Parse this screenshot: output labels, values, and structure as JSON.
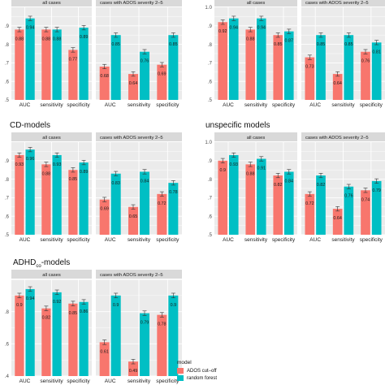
{
  "panel_titles": {
    "cd": "CD-models",
    "unspecific": "unspecific models",
    "adhd_base": "ADHD",
    "adhd_sub": "co",
    "adhd_tail": "-models"
  },
  "legend": {
    "title": "model",
    "items": [
      {
        "label": "ADOS cut–off",
        "color": "#F8766D"
      },
      {
        "label": "random forest",
        "color": "#00BFC4"
      }
    ]
  },
  "colors": {
    "ados": "#F8766D",
    "rf": "#00BFC4",
    "panel_bg": "#EBEBEB",
    "strip_bg": "#D9D9D9"
  },
  "chart_data": [
    {
      "type": "bar",
      "id": "top-left",
      "facets": [
        "all cases",
        "cases with ADOS severity 2–5"
      ],
      "categories": [
        "AUC",
        "sensitivity",
        "specificity"
      ],
      "ylim": [
        0.5,
        1.0
      ],
      "yticks": [
        ".5",
        ".6",
        ".7",
        ".8",
        ".9"
      ],
      "series": [
        {
          "name": "ADOS cut–off",
          "facet_values": [
            [
              0.88,
              0.88,
              0.77
            ],
            [
              0.68,
              0.64,
              0.69
            ]
          ]
        },
        {
          "name": "random forest",
          "facet_values": [
            [
              0.94,
              0.88,
              0.89
            ],
            [
              0.85,
              0.76,
              0.85
            ]
          ]
        }
      ]
    },
    {
      "type": "bar",
      "id": "top-right",
      "facets": [
        "all cases",
        "cases with ADOS severity 2–5"
      ],
      "categories": [
        "AUC",
        "sensitivity",
        "specificity"
      ],
      "ylim": [
        0.5,
        1.0
      ],
      "yticks": [
        ".5",
        ".6",
        ".7",
        ".8",
        ".9",
        "1.0"
      ],
      "series": [
        {
          "name": "ADOS cut–off",
          "facet_values": [
            [
              0.92,
              0.88,
              0.85
            ],
            [
              0.73,
              0.64,
              0.76
            ]
          ]
        },
        {
          "name": "random forest",
          "facet_values": [
            [
              0.94,
              0.94,
              0.87
            ],
            [
              0.85,
              0.85,
              0.81
            ]
          ]
        }
      ]
    },
    {
      "type": "bar",
      "id": "cd",
      "facets": [
        "all cases",
        "cases with ADOS severity 2–5"
      ],
      "categories": [
        "AUC",
        "sensitivity",
        "specificity"
      ],
      "ylim": [
        0.5,
        1.0
      ],
      "yticks": [
        ".5",
        ".6",
        ".7",
        ".8",
        ".9"
      ],
      "series": [
        {
          "name": "ADOS cut–off",
          "facet_values": [
            [
              0.93,
              0.88,
              0.85
            ],
            [
              0.69,
              0.65,
              0.72
            ]
          ]
        },
        {
          "name": "random forest",
          "facet_values": [
            [
              0.96,
              0.93,
              0.89
            ],
            [
              0.83,
              0.84,
              0.78
            ]
          ]
        }
      ]
    },
    {
      "type": "bar",
      "id": "unspecific",
      "facets": [
        "all cases",
        "cases with ADOS severity 2–5"
      ],
      "categories": [
        "AUC",
        "sensitivity",
        "specificity"
      ],
      "ylim": [
        0.5,
        1.0
      ],
      "yticks": [
        ".5",
        ".6",
        ".7",
        ".8",
        ".9",
        "1.0"
      ],
      "series": [
        {
          "name": "ADOS cut–off",
          "facet_values": [
            [
              0.9,
              0.88,
              0.82
            ],
            [
              0.72,
              0.64,
              0.74
            ]
          ]
        },
        {
          "name": "random forest",
          "facet_values": [
            [
              0.93,
              0.91,
              0.84
            ],
            [
              0.82,
              0.76,
              0.79
            ]
          ]
        }
      ]
    },
    {
      "type": "bar",
      "id": "adhd",
      "facets": [
        "all cases",
        "cases with ADOS severity 2–5"
      ],
      "categories": [
        "AUC",
        "sensitivity",
        "specificity"
      ],
      "ylim": [
        0.4,
        1.0
      ],
      "yticks": [
        ".4",
        ".6",
        ".8"
      ],
      "series": [
        {
          "name": "ADOS cut–off",
          "facet_values": [
            [
              0.9,
              0.82,
              0.85
            ],
            [
              0.61,
              0.49,
              0.78
            ]
          ]
        },
        {
          "name": "random forest",
          "facet_values": [
            [
              0.94,
              0.92,
              0.86
            ],
            [
              0.9,
              0.79,
              0.9
            ]
          ]
        }
      ]
    }
  ]
}
